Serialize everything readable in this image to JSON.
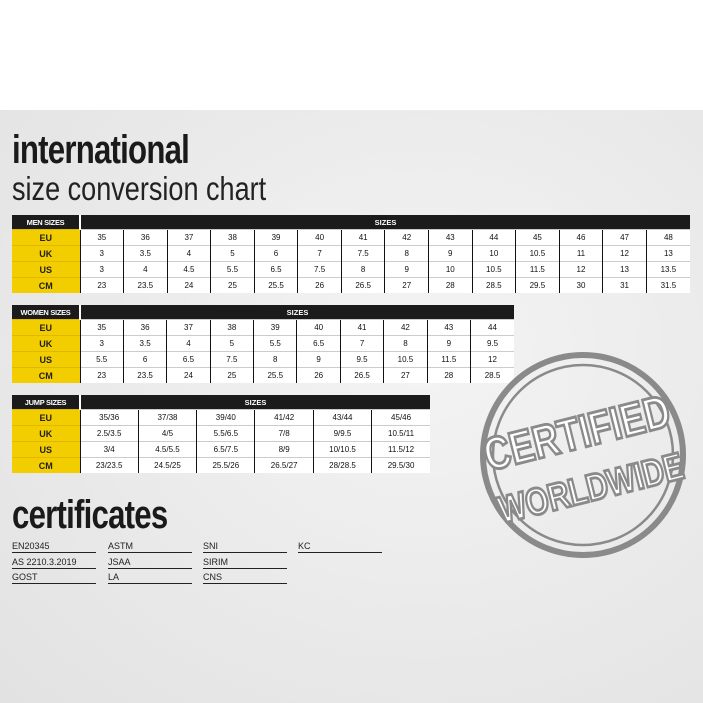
{
  "title": {
    "line1": "international",
    "line2": "size conversion chart"
  },
  "tables": [
    {
      "label": "MEN SIZES",
      "header": "SIZES",
      "rows": [
        {
          "name": "EU",
          "values": [
            "35",
            "36",
            "37",
            "38",
            "39",
            "40",
            "41",
            "42",
            "43",
            "44",
            "45",
            "46",
            "47",
            "48"
          ]
        },
        {
          "name": "UK",
          "values": [
            "3",
            "3.5",
            "4",
            "5",
            "6",
            "7",
            "7.5",
            "8",
            "9",
            "10",
            "10.5",
            "11",
            "12",
            "13"
          ]
        },
        {
          "name": "US",
          "values": [
            "3",
            "4",
            "4.5",
            "5.5",
            "6.5",
            "7.5",
            "8",
            "9",
            "10",
            "10.5",
            "11.5",
            "12",
            "13",
            "13.5"
          ]
        },
        {
          "name": "CM",
          "values": [
            "23",
            "23.5",
            "24",
            "25",
            "25.5",
            "26",
            "26.5",
            "27",
            "28",
            "28.5",
            "29.5",
            "30",
            "31",
            "31.5"
          ]
        }
      ]
    },
    {
      "label": "WOMEN SIZES",
      "header": "SIZES",
      "rows": [
        {
          "name": "EU",
          "values": [
            "35",
            "36",
            "37",
            "38",
            "39",
            "40",
            "41",
            "42",
            "43",
            "44"
          ]
        },
        {
          "name": "UK",
          "values": [
            "3",
            "3.5",
            "4",
            "5",
            "5.5",
            "6.5",
            "7",
            "8",
            "9",
            "9.5"
          ]
        },
        {
          "name": "US",
          "values": [
            "5.5",
            "6",
            "6.5",
            "7.5",
            "8",
            "9",
            "9.5",
            "10.5",
            "11.5",
            "12"
          ]
        },
        {
          "name": "CM",
          "values": [
            "23",
            "23.5",
            "24",
            "25",
            "25.5",
            "26",
            "26.5",
            "27",
            "28",
            "28.5"
          ]
        }
      ]
    },
    {
      "label": "JUMP SIZES",
      "header": "SIZES",
      "rows": [
        {
          "name": "EU",
          "values": [
            "35/36",
            "37/38",
            "39/40",
            "41/42",
            "43/44",
            "45/46"
          ]
        },
        {
          "name": "UK",
          "values": [
            "2.5/3.5",
            "4/5",
            "5.5/6.5",
            "7/8",
            "9/9.5",
            "10.5/11"
          ]
        },
        {
          "name": "US",
          "values": [
            "3/4",
            "4.5/5.5",
            "6.5/7.5",
            "8/9",
            "10/10.5",
            "11.5/12"
          ]
        },
        {
          "name": "CM",
          "values": [
            "23/23.5",
            "24.5/25",
            "25.5/26",
            "26.5/27",
            "28/28.5",
            "29.5/30"
          ]
        }
      ]
    }
  ],
  "certificates": {
    "title": "certificates",
    "columns": [
      [
        "EN20345",
        "AS 2210.3.2019",
        "GOST"
      ],
      [
        "ASTM",
        "JSAA",
        "LA"
      ],
      [
        "SNI",
        "SIRIM",
        "CNS"
      ],
      [
        "KC"
      ]
    ]
  },
  "stamp": {
    "line1": "CERTIFIED",
    "line2": "WORLDWIDE",
    "color": "#8a8a8a"
  },
  "colors": {
    "accent": "#f2cd00",
    "header": "#1b1b1b"
  }
}
